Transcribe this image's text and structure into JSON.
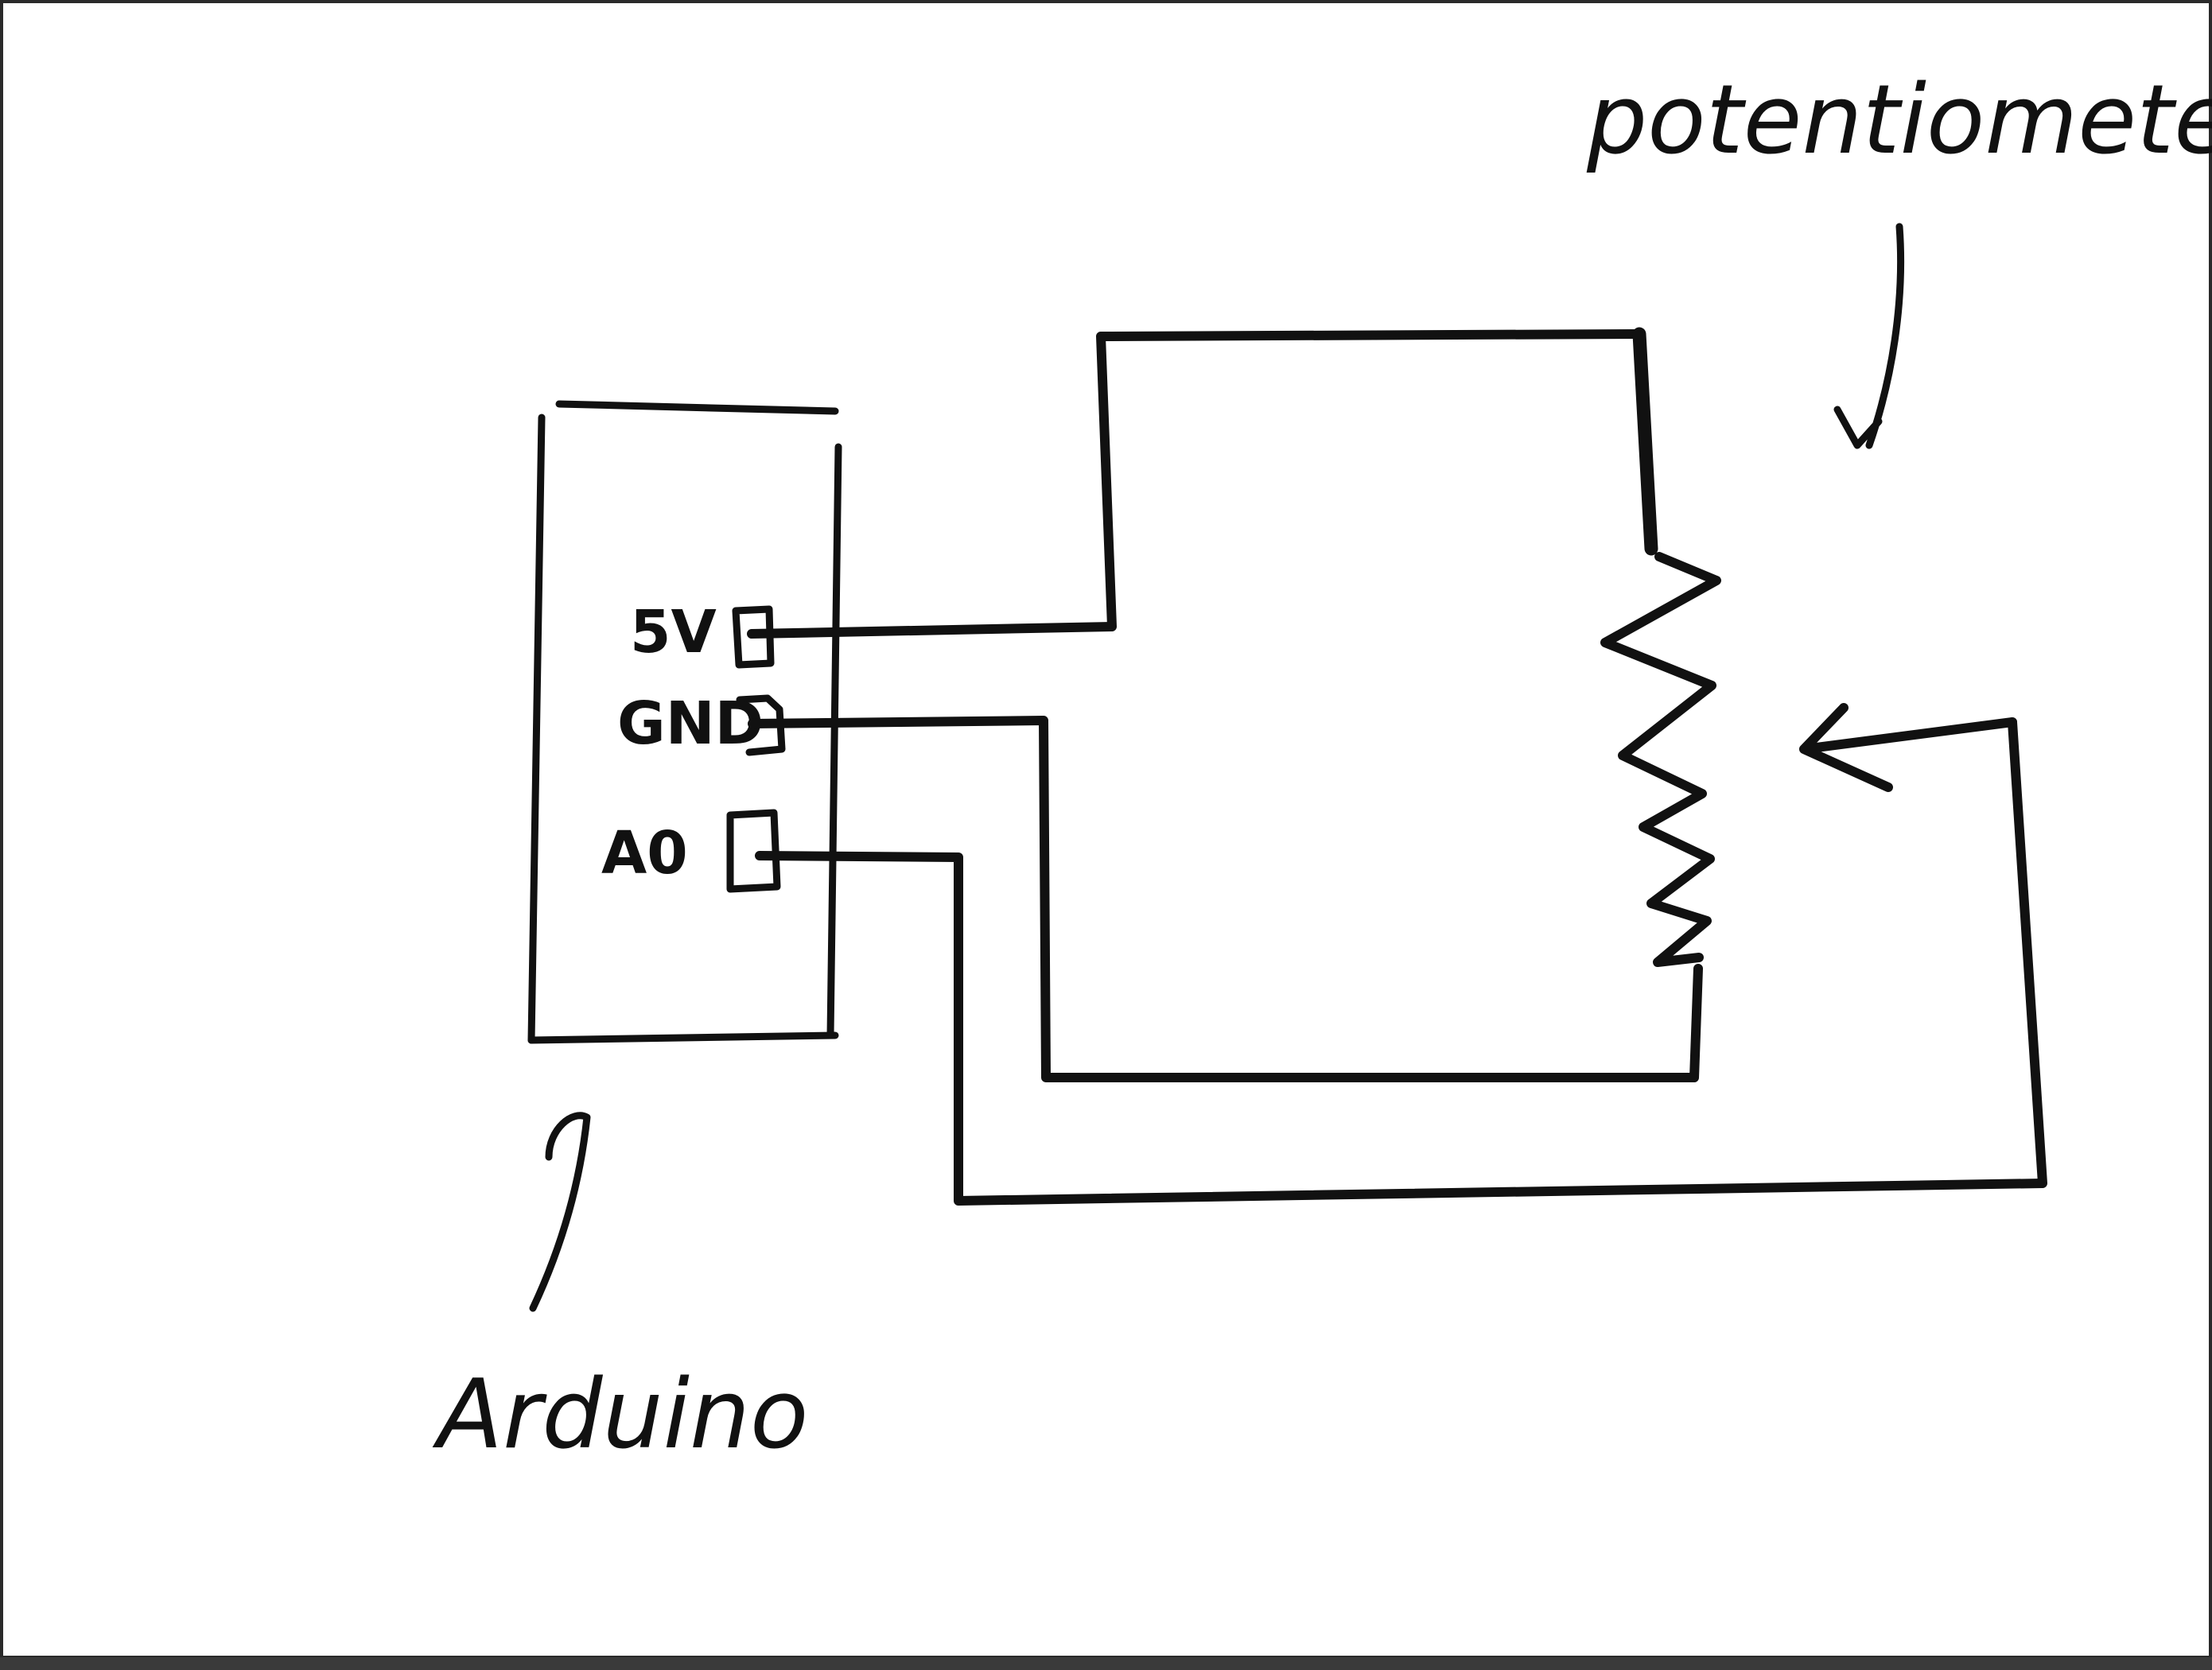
{
  "labels": {
    "potentiometer": "potentiometer.",
    "arduino": "Arduino"
  },
  "arduino": {
    "pins": [
      "5V",
      "GND",
      "A0"
    ]
  }
}
